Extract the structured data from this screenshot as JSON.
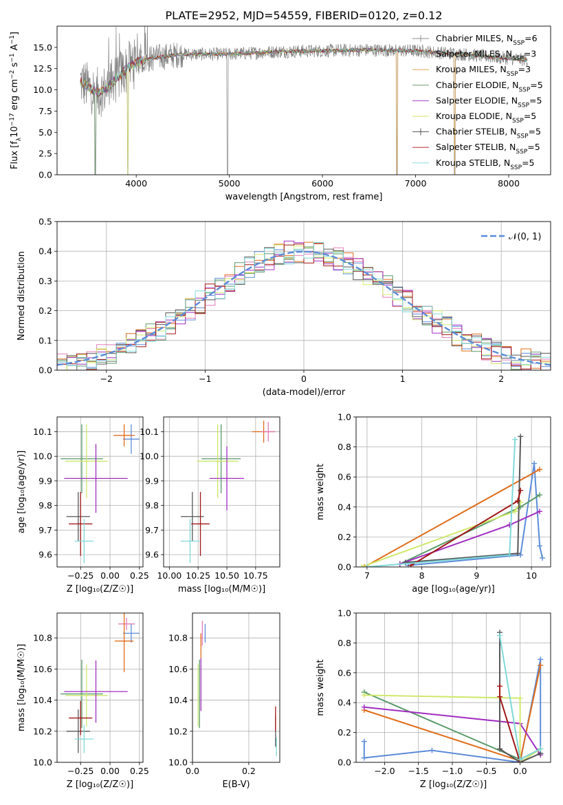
{
  "page_title": "PLATE=2952, MJD=54559, FIBERID=0120, z=0.12",
  "colors": {
    "chabrier_miles": "#1f77b4",
    "salpeter_miles": "#e8853a",
    "kroupa_miles": "#c6a25a",
    "chabrier_elodie": "#5a8a5a",
    "salpeter_elodie": "#9b30c0",
    "kroupa_elodie": "#d8e060",
    "chabrier_stelib": "#444444",
    "salpeter_stelib": "#aa1111",
    "kroupa_stelib": "#77d8d8",
    "blue_model": "#5b8bd9",
    "orange_model": "#e06c1a",
    "pink_model": "#e27ab8",
    "green_model": "#5a9a6a",
    "purple_model": "#a02cc0",
    "yellow_model": "#cfe86a",
    "gray_model": "#555555",
    "red_model": "#a01515",
    "cyan_model": "#7fd8d8",
    "spectrum": "#7f7f7f",
    "gauss": "#5b8bd9"
  },
  "chart_data": [
    {
      "type": "line",
      "title": "PLATE=2952, MJD=54559, FIBERID=0120, z=0.12",
      "xlabel": "wavelength [Angstrom, rest frame]",
      "ylabel_parts": [
        "Flux [f",
        "λ",
        "10",
        "−17",
        " erg cm",
        "−2",
        " s",
        "−1",
        " A",
        "−1",
        "]"
      ],
      "xlim": [
        3150,
        8450
      ],
      "ylim": [
        0,
        17.5
      ],
      "xticks": [
        4000,
        5000,
        6000,
        7000,
        8000
      ],
      "yticks": [
        0.0,
        2.5,
        5.0,
        7.5,
        10.0,
        12.5,
        15.0
      ],
      "ytick_labels": [
        "0.0",
        "2.5",
        "5.0",
        "7.5",
        "10.0",
        "12.5",
        "15.0"
      ],
      "legend_position": "upper-right",
      "legend": [
        {
          "name": "Chabrier MILES, N",
          "sub": "SSP",
          "tail": "=6",
          "color": "#8a8a8a"
        },
        {
          "name": "Salpeter MILES, N",
          "sub": "SSP",
          "tail": "=3",
          "color": "#8a8a8a"
        },
        {
          "name": "Kroupa MILES, N",
          "sub": "SSP",
          "tail": "=3",
          "color": "#d49a3a"
        },
        {
          "name": "Chabrier ELODIE, N",
          "sub": "SSP",
          "tail": "=5",
          "color": "#5a8a5a"
        },
        {
          "name": "Salpeter ELODIE, N",
          "sub": "SSP",
          "tail": "=5",
          "color": "#9b30c0"
        },
        {
          "name": "Kroupa ELODIE, N",
          "sub": "SSP",
          "tail": "=5",
          "color": "#d8e060"
        },
        {
          "name": "Chabrier STELIB, N",
          "sub": "SSP",
          "tail": "=5",
          "color": "#444444"
        },
        {
          "name": "Salpeter STELIB, N",
          "sub": "SSP",
          "tail": "=5",
          "color": "#aa1111"
        },
        {
          "name": "Kroupa STELIB, N",
          "sub": "SSP",
          "tail": "=5",
          "color": "#77d8d8"
        }
      ],
      "spectrum_wavelength_range": [
        3400,
        8200
      ],
      "spectrum_continuum": [
        [
          3400,
          11.0
        ],
        [
          3500,
          10.2
        ],
        [
          3600,
          9.6
        ],
        [
          3700,
          10.3
        ],
        [
          3800,
          11.5
        ],
        [
          3900,
          12.5
        ],
        [
          4000,
          13.2
        ],
        [
          4200,
          13.8
        ],
        [
          4500,
          14.2
        ],
        [
          5000,
          14.2
        ],
        [
          5500,
          14.5
        ],
        [
          6000,
          14.6
        ],
        [
          6500,
          14.7
        ],
        [
          7000,
          14.6
        ],
        [
          7500,
          14.2
        ],
        [
          8000,
          13.7
        ],
        [
          8200,
          13.5
        ]
      ],
      "spectrum_drops": [
        3560,
        3910,
        4980,
        6800,
        7420
      ],
      "note": "continuum and drops are approximate readings"
    },
    {
      "type": "histogram",
      "xlabel": "(data-model)/error",
      "ylabel": "Normed distribution",
      "xlim": [
        -2.5,
        2.5
      ],
      "ylim": [
        0,
        0.5
      ],
      "xticks": [
        -2,
        -1,
        0,
        1,
        2
      ],
      "xtick_labels": [
        "−2",
        "−1",
        "0",
        "1",
        "2"
      ],
      "yticks": [
        0.0,
        0.1,
        0.2,
        0.3,
        0.4,
        0.5
      ],
      "ytick_labels": [
        "0.0",
        "0.1",
        "0.2",
        "0.3",
        "0.4",
        "0.5"
      ],
      "legend_label": "𝒩(0, 1)",
      "legend_position": "upper-right",
      "bin_width": 0.1,
      "series_colors": [
        "#5b8bd9",
        "#e06c1a",
        "#e27ab8",
        "#5a9a6a",
        "#a02cc0",
        "#cfe86a",
        "#555555",
        "#a01515",
        "#7fd8d8"
      ]
    },
    {
      "type": "errorbar",
      "xlabel": "Z [log₁₀(Z/Z☉)]",
      "ylabel": "age  [log₁₀(age/yr)]",
      "xlim": [
        -0.45,
        0.28
      ],
      "ylim": [
        9.55,
        10.16
      ],
      "xticks": [
        -0.25,
        0.0,
        0.25
      ],
      "xtick_labels": [
        "−0.25",
        "0.00",
        "0.25"
      ],
      "yticks": [
        9.6,
        9.7,
        9.8,
        9.9,
        10.0,
        10.1
      ],
      "ytick_labels": [
        "9.6",
        "9.7",
        "9.8",
        "9.9",
        "10.0",
        "10.1"
      ],
      "points": [
        {
          "x": 0.18,
          "xerr": 0.07,
          "y": 10.07,
          "yerr": 0.06,
          "color": "#5b8bd9"
        },
        {
          "x": 0.12,
          "xerr": 0.09,
          "y": 10.085,
          "yerr": 0.045,
          "color": "#e06c1a"
        },
        {
          "x": -0.24,
          "xerr": 0.18,
          "y": 9.99,
          "yerr": 0.14,
          "color": "#5a9a6a"
        },
        {
          "x": -0.2,
          "xerr": 0.18,
          "y": 9.98,
          "yerr": 0.15,
          "color": "#cfe86a"
        },
        {
          "x": -0.12,
          "xerr": 0.27,
          "y": 9.91,
          "yerr": 0.14,
          "color": "#a02cc0"
        },
        {
          "x": -0.27,
          "xerr": 0.1,
          "y": 9.755,
          "yerr": 0.1,
          "color": "#555555"
        },
        {
          "x": -0.25,
          "xerr": 0.1,
          "y": 9.725,
          "yerr": 0.13,
          "color": "#a01515"
        },
        {
          "x": -0.22,
          "xerr": 0.08,
          "y": 9.655,
          "yerr": 0.09,
          "color": "#7fd8d8"
        }
      ]
    },
    {
      "type": "errorbar",
      "xlabel": "mass [log₁₀(M/M☉)]",
      "ylabel": "",
      "xlim": [
        9.95,
        10.96
      ],
      "ylim": [
        9.55,
        10.16
      ],
      "xticks": [
        10.0,
        10.25,
        10.5,
        10.75
      ],
      "xtick_labels": [
        "10.00",
        "10.25",
        "10.50",
        "10.75"
      ],
      "yticks": [
        9.6,
        9.7,
        9.8,
        9.9,
        10.0,
        10.1
      ],
      "ytick_labels": [
        "9.6",
        "9.7",
        "9.8",
        "9.9",
        "10.0",
        "10.1"
      ],
      "points": [
        {
          "x": 10.82,
          "xerr": 0.1,
          "y": 10.1,
          "yerr": 0.045,
          "color": "#e06c1a"
        },
        {
          "x": 10.86,
          "xerr": 0.06,
          "y": 10.1,
          "yerr": 0.04,
          "color": "#e27ab8"
        },
        {
          "x": 10.45,
          "xerr": 0.17,
          "y": 9.99,
          "yerr": 0.14,
          "color": "#5a9a6a"
        },
        {
          "x": 10.42,
          "xerr": 0.18,
          "y": 9.98,
          "yerr": 0.15,
          "color": "#cfe86a"
        },
        {
          "x": 10.5,
          "xerr": 0.15,
          "y": 9.91,
          "yerr": 0.13,
          "color": "#a02cc0"
        },
        {
          "x": 10.2,
          "xerr": 0.1,
          "y": 9.755,
          "yerr": 0.1,
          "color": "#555555"
        },
        {
          "x": 10.27,
          "xerr": 0.08,
          "y": 9.725,
          "yerr": 0.13,
          "color": "#a01515"
        },
        {
          "x": 10.18,
          "xerr": 0.08,
          "y": 9.655,
          "yerr": 0.09,
          "color": "#7fd8d8"
        }
      ]
    },
    {
      "type": "line",
      "xlabel": "age  [log₁₀(age/yr)]",
      "ylabel": "mass weight",
      "xlim": [
        6.8,
        10.35
      ],
      "ylim": [
        0,
        1.0
      ],
      "xticks": [
        7,
        8,
        9,
        10
      ],
      "xtick_labels": [
        "7",
        "8",
        "9",
        "10"
      ],
      "yticks": [
        0.0,
        0.2,
        0.4,
        0.6,
        0.8,
        1.0
      ],
      "ytick_labels": [
        "0.0",
        "0.2",
        "0.4",
        "0.6",
        "0.8",
        "1.0"
      ],
      "series": [
        {
          "color": "#5b8bd9",
          "x": [
            7.75,
            9.8,
            10.05,
            10.15,
            10.2
          ],
          "y": [
            0.01,
            0.08,
            0.69,
            0.14,
            0.06
          ]
        },
        {
          "color": "#e06c1a",
          "x": [
            6.95,
            10.15
          ],
          "y": [
            0.0,
            0.65
          ]
        },
        {
          "color": "#5a9a6a",
          "x": [
            7.6,
            9.8,
            10.15
          ],
          "y": [
            0.02,
            0.4,
            0.48
          ]
        },
        {
          "color": "#a02cc0",
          "x": [
            7.6,
            9.6,
            10.15
          ],
          "y": [
            0.02,
            0.28,
            0.37
          ]
        },
        {
          "color": "#cfe86a",
          "x": [
            6.9,
            9.7,
            9.8
          ],
          "y": [
            0.0,
            0.37,
            0.43
          ]
        },
        {
          "color": "#555555",
          "x": [
            7.7,
            9.75,
            9.8
          ],
          "y": [
            0.03,
            0.09,
            0.87
          ]
        },
        {
          "color": "#a01515",
          "x": [
            7.8,
            9.75,
            9.8
          ],
          "y": [
            0.01,
            0.44,
            0.51
          ]
        },
        {
          "color": "#7fd8d8",
          "x": [
            7.0,
            9.6,
            9.7
          ],
          "y": [
            0.0,
            0.08,
            0.85
          ]
        }
      ]
    },
    {
      "type": "errorbar",
      "xlabel": "Z [log₁₀(Z/Z☉)]",
      "ylabel": "mass [log₁₀(M/M☉)]",
      "xlim": [
        -0.45,
        0.28
      ],
      "ylim": [
        10.0,
        10.96
      ],
      "xticks": [
        -0.25,
        0.0,
        0.25
      ],
      "xtick_labels": [
        "−0.25",
        "0.00",
        "0.25"
      ],
      "yticks": [
        10.0,
        10.2,
        10.4,
        10.6,
        10.8
      ],
      "ytick_labels": [
        "10.0",
        "10.2",
        "10.4",
        "10.6",
        "10.8"
      ],
      "points": [
        {
          "x": 0.18,
          "xerr": 0.07,
          "y": 10.83,
          "yerr": 0.06,
          "color": "#5b8bd9"
        },
        {
          "x": 0.14,
          "xerr": 0.07,
          "y": 10.89,
          "yerr": 0.04,
          "color": "#e27ab8"
        },
        {
          "x": 0.12,
          "xerr": 0.08,
          "y": 10.78,
          "yerr": 0.2,
          "color": "#e06c1a"
        },
        {
          "x": -0.24,
          "xerr": 0.18,
          "y": 10.44,
          "yerr": 0.22,
          "color": "#5a9a6a"
        },
        {
          "x": -0.2,
          "xerr": 0.18,
          "y": 10.43,
          "yerr": 0.2,
          "color": "#cfe86a"
        },
        {
          "x": -0.12,
          "xerr": 0.27,
          "y": 10.455,
          "yerr": 0.2,
          "color": "#a02cc0"
        },
        {
          "x": -0.27,
          "xerr": 0.1,
          "y": 10.2,
          "yerr": 0.14,
          "color": "#555555"
        },
        {
          "x": -0.25,
          "xerr": 0.1,
          "y": 10.285,
          "yerr": 0.11,
          "color": "#a01515"
        },
        {
          "x": -0.22,
          "xerr": 0.08,
          "y": 10.15,
          "yerr": 0.09,
          "color": "#7fd8d8"
        }
      ]
    },
    {
      "type": "errorbar",
      "xlabel": "E(B-V)",
      "ylabel": "",
      "xlim": [
        0.0,
        0.31
      ],
      "ylim": [
        10.0,
        10.96
      ],
      "xticks": [
        0.0,
        0.2
      ],
      "xtick_labels": [
        "0.0",
        "0.2"
      ],
      "yticks": [
        10.0,
        10.2,
        10.4,
        10.6,
        10.8
      ],
      "ytick_labels": [
        "10.0",
        "10.2",
        "10.4",
        "10.6",
        "10.8"
      ],
      "points": [
        {
          "x": 0.045,
          "y": 10.83,
          "yerr": 0.06,
          "color": "#5b8bd9"
        },
        {
          "x": 0.035,
          "y": 10.83,
          "yerr": 0.08,
          "color": "#e27ab8"
        },
        {
          "x": 0.03,
          "y": 10.75,
          "yerr": 0.08,
          "color": "#e06c1a"
        },
        {
          "x": 0.025,
          "y": 10.44,
          "yerr": 0.22,
          "color": "#5a9a6a"
        },
        {
          "x": 0.02,
          "y": 10.43,
          "yerr": 0.2,
          "color": "#cfe86a"
        },
        {
          "x": 0.03,
          "y": 10.5,
          "yerr": 0.17,
          "color": "#a02cc0"
        },
        {
          "x": 0.295,
          "y": 10.2,
          "yerr": 0.1,
          "color": "#555555"
        },
        {
          "x": 0.295,
          "y": 10.28,
          "yerr": 0.08,
          "color": "#a01515"
        },
        {
          "x": 0.298,
          "y": 10.1,
          "yerr": 0.06,
          "color": "#7fd8d8"
        }
      ]
    },
    {
      "type": "line",
      "xlabel": "Z [log₁₀(Z/Z☉)]",
      "ylabel": "mass weight",
      "xlim": [
        -2.42,
        0.45
      ],
      "ylim": [
        0,
        1.0
      ],
      "xticks": [
        -2.0,
        -1.5,
        -1.0,
        -0.5,
        0.0
      ],
      "xtick_labels": [
        "−2.0",
        "−1.5",
        "−1.0",
        "−0.5",
        "0.0"
      ],
      "yticks": [
        0.0,
        0.2,
        0.4,
        0.6,
        0.8,
        1.0
      ],
      "ytick_labels": [
        "0.0",
        "0.2",
        "0.4",
        "0.6",
        "0.8",
        "1.0"
      ],
      "series": [
        {
          "color": "#5b8bd9",
          "x": [
            -2.3,
            -2.3,
            -1.3,
            0.0,
            0.3,
            0.3
          ],
          "y": [
            0.14,
            0.03,
            0.08,
            0.0,
            0.69,
            0.06
          ]
        },
        {
          "color": "#e06c1a",
          "x": [
            -2.3,
            0.0,
            0.3
          ],
          "y": [
            0.35,
            0.01,
            0.65
          ]
        },
        {
          "color": "#5a9a6a",
          "x": [
            -2.3,
            0.0,
            0.3
          ],
          "y": [
            0.47,
            0.02,
            0.09
          ]
        },
        {
          "color": "#a02cc0",
          "x": [
            -2.3,
            0.0,
            0.3
          ],
          "y": [
            0.37,
            0.26,
            0.05
          ]
        },
        {
          "color": "#cfe86a",
          "x": [
            -2.3,
            0.0,
            0.0,
            0.3
          ],
          "y": [
            0.45,
            0.43,
            0.0,
            0.09
          ]
        },
        {
          "color": "#555555",
          "x": [
            -0.3,
            -0.3,
            0.0,
            0.3
          ],
          "y": [
            0.87,
            0.09,
            0.0,
            0.06
          ]
        },
        {
          "color": "#a01515",
          "x": [
            -0.3,
            -0.3,
            0.0
          ],
          "y": [
            0.51,
            0.44,
            0.0
          ]
        },
        {
          "color": "#7fd8d8",
          "x": [
            -0.3,
            0.0,
            0.3
          ],
          "y": [
            0.85,
            0.02,
            0.09
          ]
        }
      ]
    }
  ]
}
